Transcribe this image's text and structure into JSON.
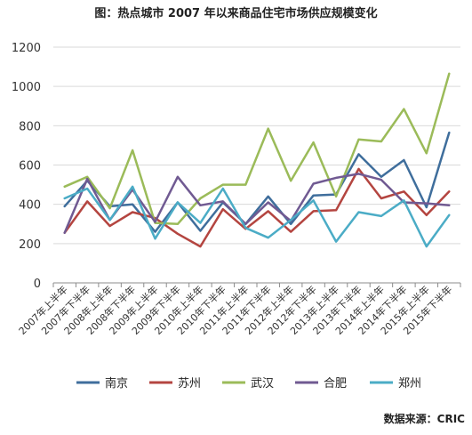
{
  "chart_data": {
    "type": "line",
    "title": "图：热点城市 2007 年以来商品住宅市场供应规模变化",
    "source": "数据来源：CRIC",
    "ylim": [
      0,
      1200
    ],
    "yticks": [
      0,
      200,
      400,
      600,
      800,
      1000,
      1200
    ],
    "grid": true,
    "legend_position": "bottom",
    "categories": [
      "2007年上半年",
      "2007年下半年",
      "2008年上半年",
      "2008年下半年",
      "2009年上半年",
      "2009年下半年",
      "2010年上半年",
      "2010年下半年",
      "2011年上半年",
      "2011年下半年",
      "2012年上半年",
      "2012年下半年",
      "2013年上半年",
      "2013年下半年",
      "2014年上半年",
      "2014年下半年",
      "2015年上半年",
      "2015年下半年"
    ],
    "series": [
      {
        "name": "南京",
        "color": "#3F6E9C",
        "values": [
          390,
          520,
          390,
          400,
          260,
          410,
          265,
          410,
          300,
          440,
          300,
          445,
          450,
          655,
          540,
          625,
          385,
          765
        ]
      },
      {
        "name": "苏州",
        "color": "#B44540",
        "values": [
          255,
          415,
          290,
          360,
          330,
          250,
          185,
          375,
          275,
          365,
          260,
          365,
          370,
          580,
          430,
          465,
          345,
          465
        ]
      },
      {
        "name": "武汉",
        "color": "#9BBB59",
        "values": [
          490,
          540,
          380,
          675,
          305,
          300,
          430,
          500,
          500,
          785,
          520,
          715,
          440,
          730,
          720,
          885,
          660,
          1065
        ]
      },
      {
        "name": "合肥",
        "color": "#705A92",
        "values": [
          255,
          530,
          320,
          475,
          310,
          540,
          395,
          415,
          300,
          410,
          315,
          505,
          535,
          555,
          525,
          410,
          405,
          395
        ]
      },
      {
        "name": "郑州",
        "color": "#4BACC6",
        "values": [
          430,
          480,
          320,
          490,
          225,
          410,
          305,
          480,
          280,
          230,
          320,
          420,
          210,
          360,
          340,
          420,
          185,
          345
        ]
      }
    ]
  }
}
